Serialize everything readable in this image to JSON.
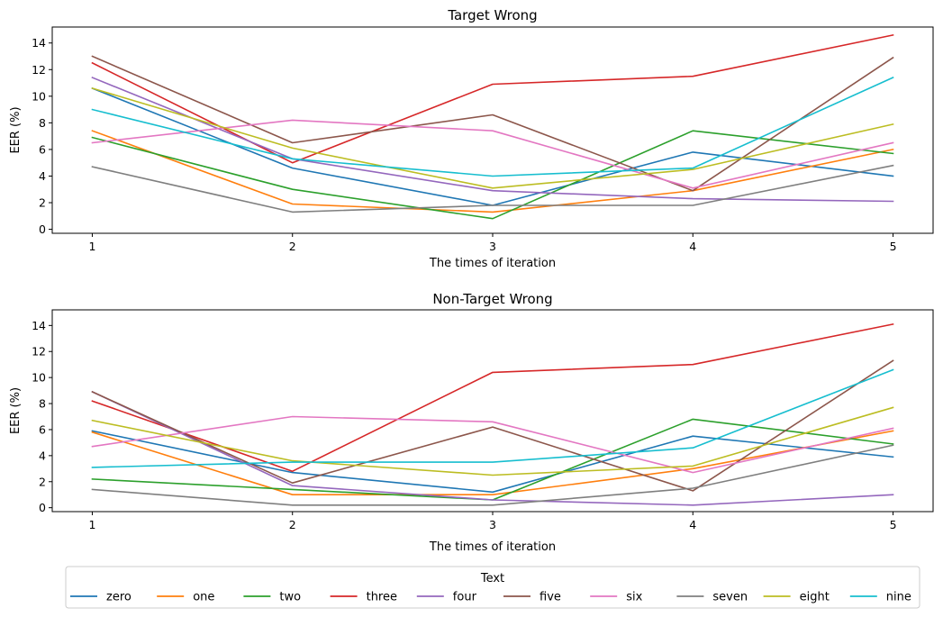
{
  "chart_data": [
    {
      "type": "line",
      "title": "Target Wrong",
      "xlabel": "The times of iteration",
      "ylabel": "EER (%)",
      "x": [
        1,
        2,
        3,
        4,
        5
      ],
      "xticks": [
        "1",
        "2",
        "3",
        "4",
        "5"
      ],
      "yticks": [
        "0",
        "2",
        "4",
        "6",
        "8",
        "10",
        "12",
        "14"
      ],
      "ylim": [
        -0.3,
        15.2
      ],
      "grid": false,
      "series": [
        {
          "name": "zero",
          "color": "#1f77b4",
          "values": [
            10.6,
            4.6,
            1.8,
            5.8,
            4.0
          ]
        },
        {
          "name": "one",
          "color": "#ff7f0e",
          "values": [
            7.4,
            1.9,
            1.3,
            2.9,
            6.0
          ]
        },
        {
          "name": "two",
          "color": "#2ca02c",
          "values": [
            6.9,
            3.0,
            0.8,
            7.4,
            5.7
          ]
        },
        {
          "name": "three",
          "color": "#d62728",
          "values": [
            12.5,
            5.0,
            10.9,
            11.5,
            14.6
          ]
        },
        {
          "name": "four",
          "color": "#9467bd",
          "values": [
            11.4,
            5.3,
            2.9,
            2.3,
            2.1
          ]
        },
        {
          "name": "five",
          "color": "#8c564b",
          "values": [
            13.0,
            6.5,
            8.6,
            2.9,
            12.9
          ]
        },
        {
          "name": "six",
          "color": "#e377c2",
          "values": [
            6.5,
            8.2,
            7.4,
            3.1,
            6.5
          ]
        },
        {
          "name": "seven",
          "color": "#7f7f7f",
          "values": [
            4.7,
            1.3,
            1.8,
            1.8,
            4.8
          ]
        },
        {
          "name": "eight",
          "color": "#bcbd22",
          "values": [
            10.6,
            6.1,
            3.1,
            4.5,
            7.9
          ]
        },
        {
          "name": "nine",
          "color": "#17becf",
          "values": [
            9.0,
            5.3,
            4.0,
            4.6,
            11.4
          ]
        }
      ]
    },
    {
      "type": "line",
      "title": "Non-Target Wrong",
      "xlabel": "The times of iteration",
      "ylabel": "EER (%)",
      "x": [
        1,
        2,
        3,
        4,
        5
      ],
      "xticks": [
        "1",
        "2",
        "3",
        "4",
        "5"
      ],
      "yticks": [
        "0",
        "2",
        "4",
        "6",
        "8",
        "10",
        "12",
        "14"
      ],
      "ylim": [
        -0.3,
        15.2
      ],
      "grid": false,
      "series": [
        {
          "name": "zero",
          "color": "#1f77b4",
          "values": [
            5.9,
            2.7,
            1.2,
            5.5,
            3.9
          ]
        },
        {
          "name": "one",
          "color": "#ff7f0e",
          "values": [
            5.8,
            1.0,
            1.0,
            3.0,
            5.9
          ]
        },
        {
          "name": "two",
          "color": "#2ca02c",
          "values": [
            2.2,
            1.4,
            0.6,
            6.8,
            4.9
          ]
        },
        {
          "name": "three",
          "color": "#d62728",
          "values": [
            8.2,
            2.8,
            10.4,
            11.0,
            14.1
          ]
        },
        {
          "name": "four",
          "color": "#9467bd",
          "values": [
            8.9,
            1.7,
            0.6,
            0.2,
            1.0
          ]
        },
        {
          "name": "five",
          "color": "#8c564b",
          "values": [
            8.9,
            1.9,
            6.2,
            1.3,
            11.3
          ]
        },
        {
          "name": "six",
          "color": "#e377c2",
          "values": [
            4.7,
            7.0,
            6.6,
            2.7,
            6.1
          ]
        },
        {
          "name": "seven",
          "color": "#7f7f7f",
          "values": [
            1.4,
            0.2,
            0.2,
            1.5,
            4.8
          ]
        },
        {
          "name": "eight",
          "color": "#bcbd22",
          "values": [
            6.7,
            3.6,
            2.5,
            3.2,
            7.7
          ]
        },
        {
          "name": "nine",
          "color": "#17becf",
          "values": [
            3.1,
            3.5,
            3.5,
            4.6,
            10.6
          ]
        }
      ]
    }
  ],
  "legend": {
    "title": "Text",
    "placement": "bottom-center",
    "entries": [
      "zero",
      "one",
      "two",
      "three",
      "four",
      "five",
      "six",
      "seven",
      "eight",
      "nine"
    ]
  }
}
